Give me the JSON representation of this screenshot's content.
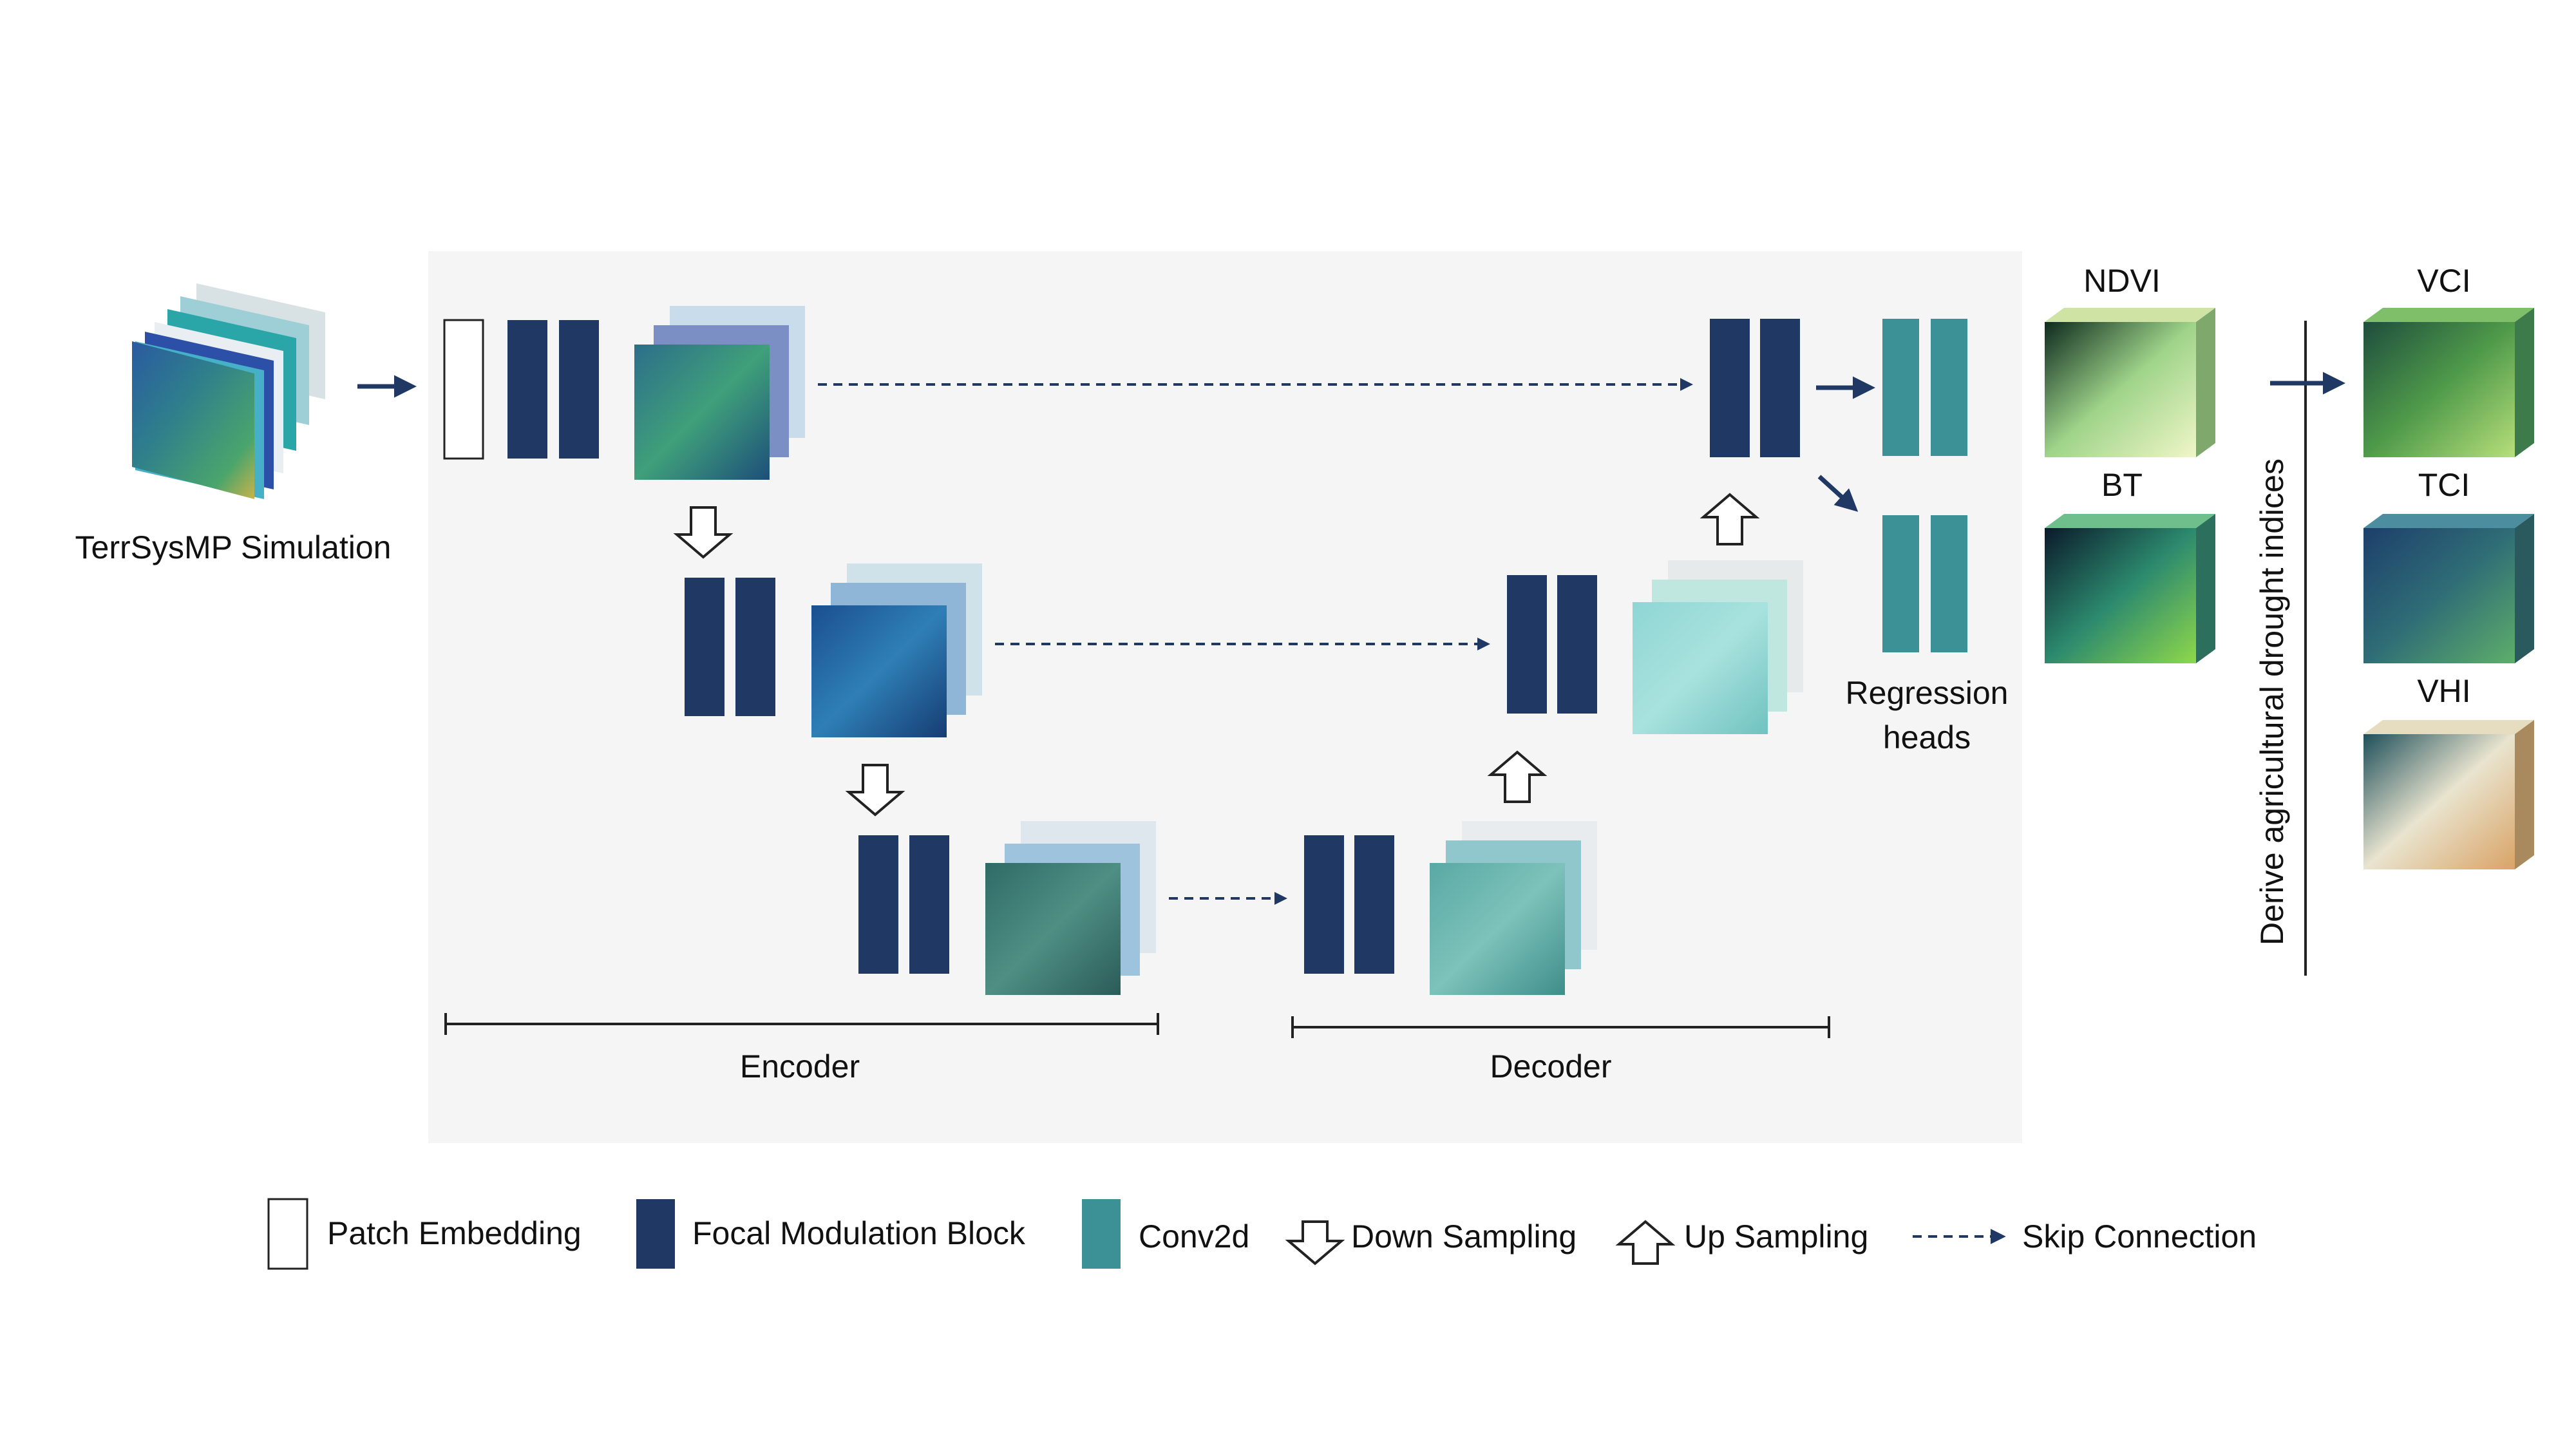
{
  "input": {
    "label": "TerrSysMP Simulation"
  },
  "encoder_label": "Encoder",
  "decoder_label": "Decoder",
  "regression": {
    "line1": "Regression",
    "line2": "heads"
  },
  "predictions": [
    {
      "label": "NDVI"
    },
    {
      "label": "BT"
    }
  ],
  "derive_label": "Derive agricultural drought indices",
  "indices": [
    {
      "label": "VCI"
    },
    {
      "label": "TCI"
    },
    {
      "label": "VHI"
    }
  ],
  "legend": {
    "patch_embedding": "Patch Embedding",
    "focal_block": "Focal Modulation Block",
    "conv2d": "Conv2d",
    "down_sampling": "Down Sampling",
    "up_sampling": "Up Sampling",
    "skip_connection": "Skip Connection"
  },
  "colors": {
    "panel": "#f5f5f5",
    "focal_block": "#1f3864",
    "conv2d": "#3c9196",
    "arrow": "#1f3864"
  }
}
